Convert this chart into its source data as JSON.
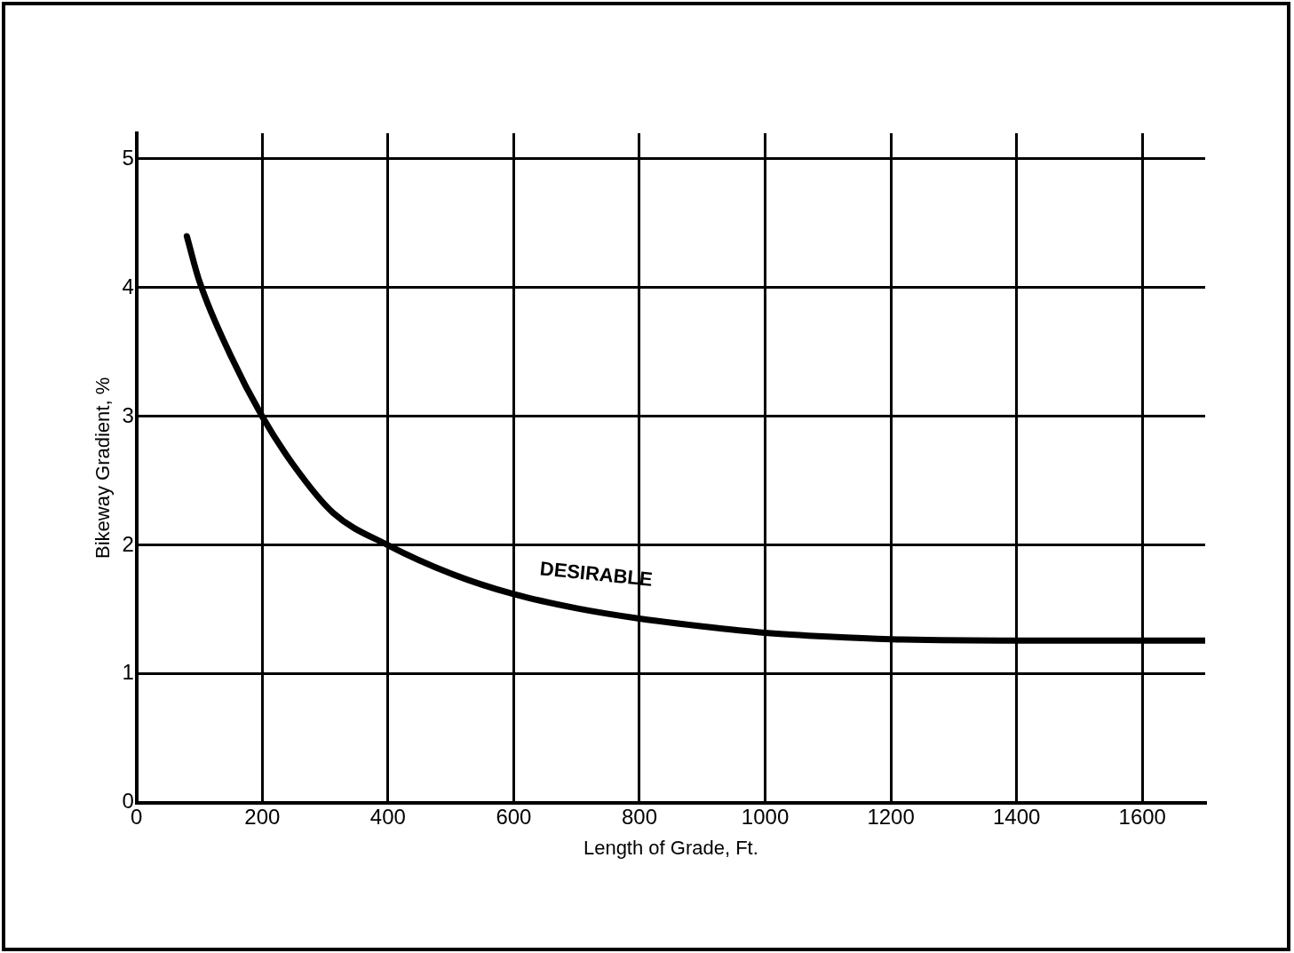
{
  "chart_data": {
    "type": "line",
    "xlabel": "Length of Grade, Ft.",
    "ylabel": "Bikeway Gradient, %",
    "x": [
      80,
      100,
      150,
      200,
      250,
      313,
      400,
      500,
      600,
      700,
      800,
      900,
      1000,
      1100,
      1200,
      1400,
      1700
    ],
    "values": [
      4.4,
      4.05,
      3.47,
      3.0,
      2.62,
      2.25,
      2.0,
      1.78,
      1.62,
      1.51,
      1.43,
      1.37,
      1.32,
      1.29,
      1.27,
      1.26,
      1.26
    ],
    "color": "#000000",
    "marker": "none",
    "line_style": "solid",
    "xlim": [
      0,
      1700
    ],
    "xticks": [
      0,
      200,
      400,
      600,
      800,
      1000,
      1200,
      1400,
      1600
    ],
    "ylim": [
      0,
      5.2
    ],
    "yticks": [
      0,
      1,
      2,
      3,
      4,
      5
    ],
    "grid": true,
    "legend": false,
    "annotations": [
      "DESIRABLE"
    ]
  }
}
